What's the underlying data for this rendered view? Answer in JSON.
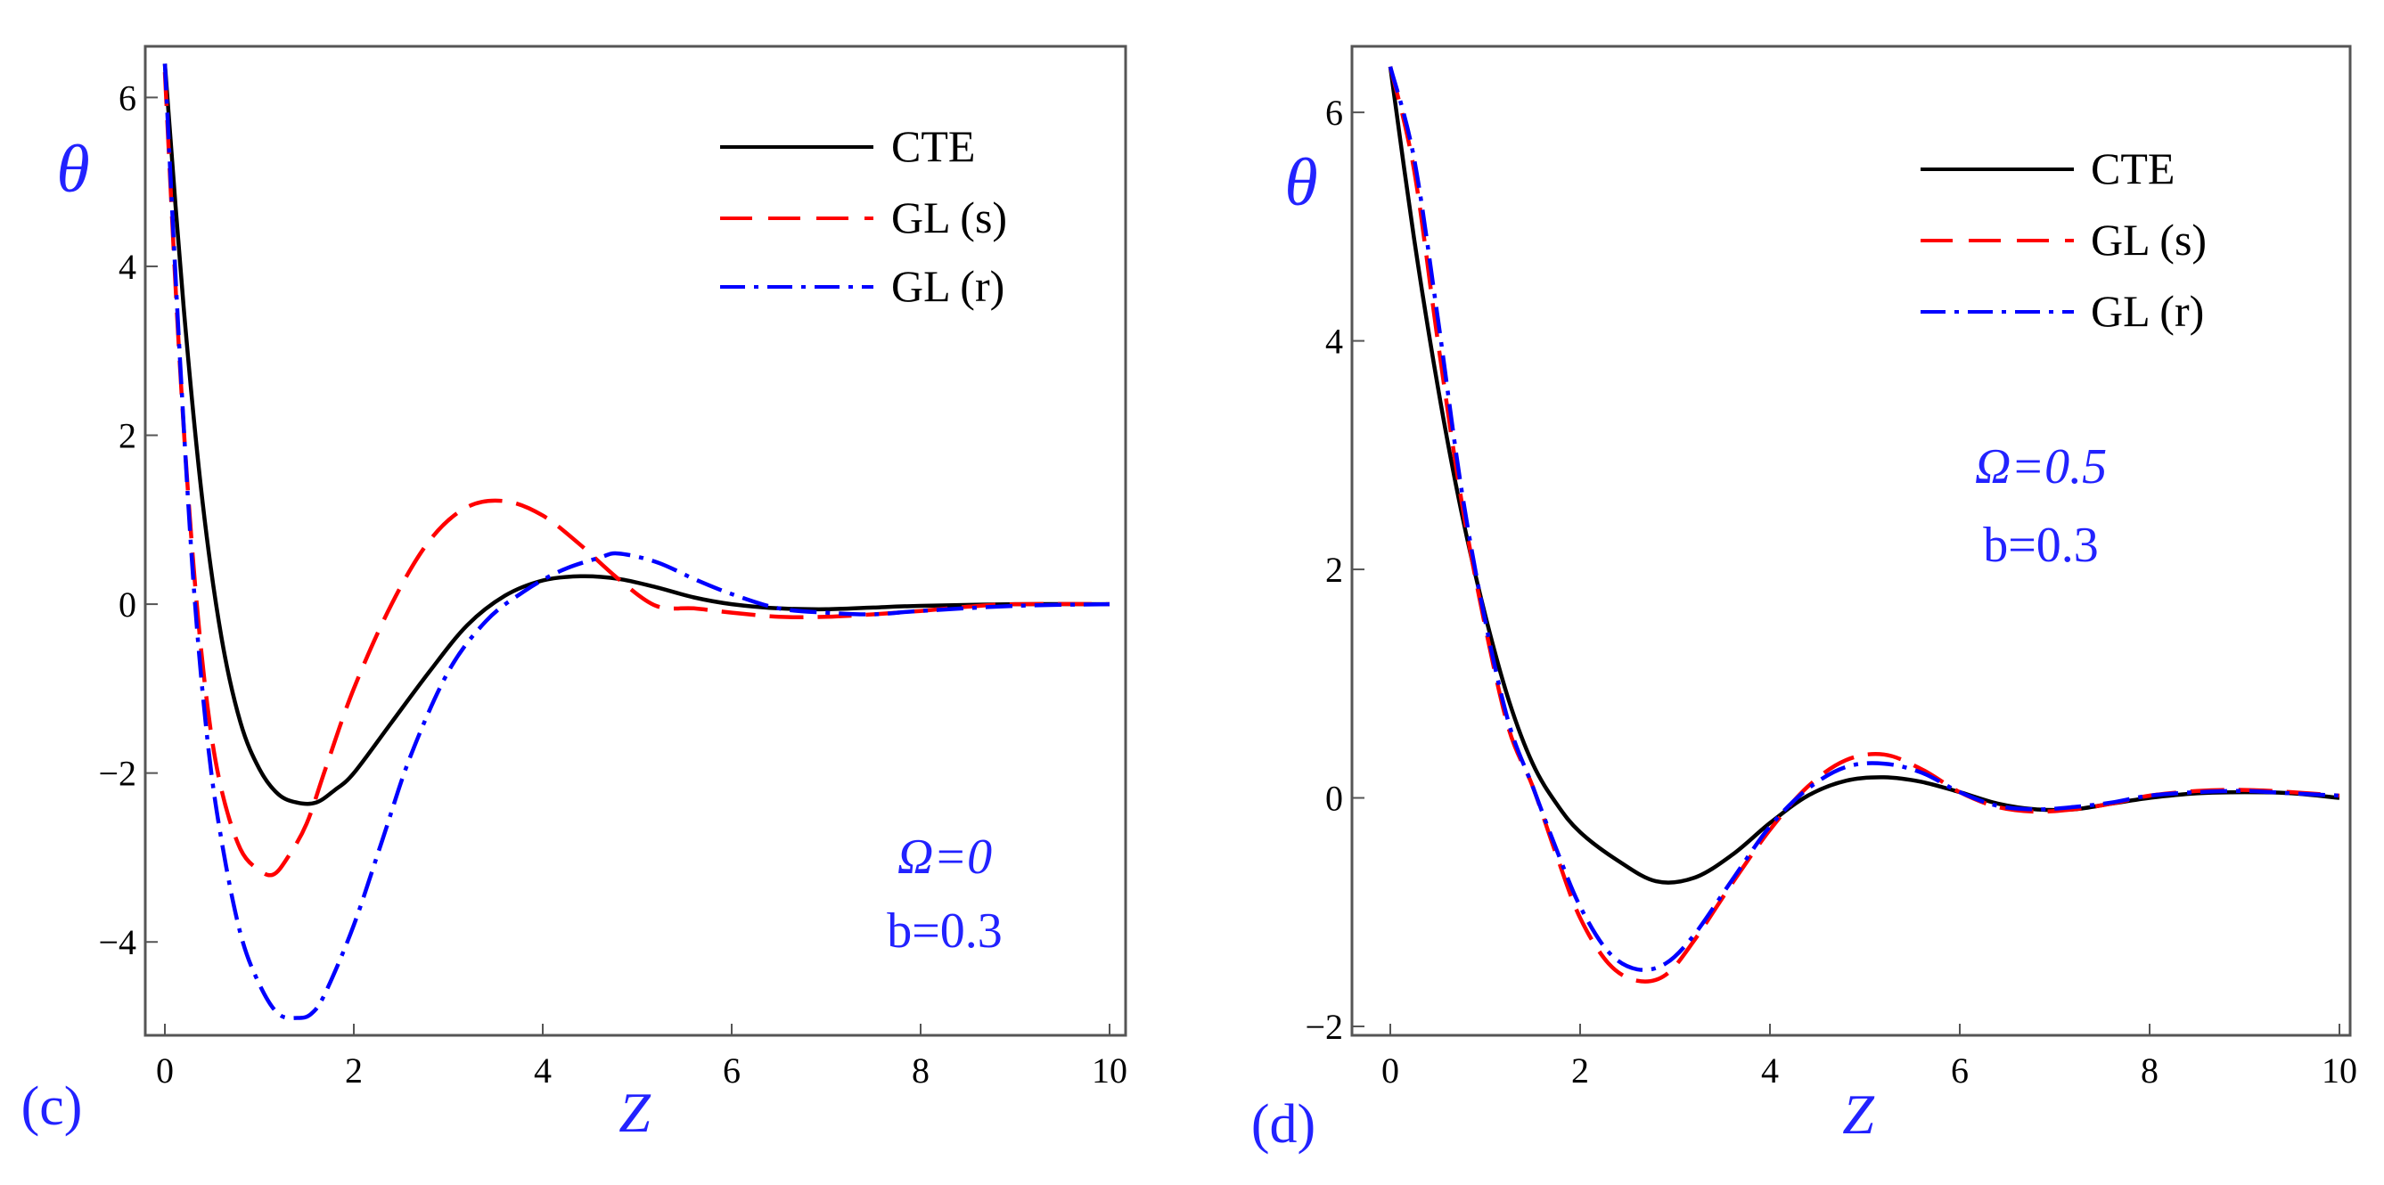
{
  "colors": {
    "CTE": "#000000",
    "GL (s)": "#ff0000",
    "GL (r)": "#0000ff",
    "annotation": "#2222ff",
    "axis": "#555555",
    "text": "#000000"
  },
  "chart_data": [
    {
      "type": "line",
      "panel_label": "(c)",
      "xlabel": "Z",
      "ylabel": "θ",
      "xlim": [
        0,
        10
      ],
      "ylim": [
        -5,
        6.5
      ],
      "xticks": [
        0,
        2,
        4,
        6,
        8,
        10
      ],
      "yticks": [
        -4,
        -2,
        0,
        2,
        4,
        6
      ],
      "xtick_labels": [
        "0",
        "2",
        "4",
        "6",
        "8",
        "10"
      ],
      "ytick_labels": [
        "−4",
        "−2",
        "0",
        "2",
        "4",
        "6"
      ],
      "legend": {
        "position": "top-right",
        "entries": [
          "CTE",
          "GL (s)",
          "GL (r)"
        ]
      },
      "annotations": [
        "Ω=0",
        "b=0.3"
      ],
      "annotation_position": "bottom-right",
      "grid": false,
      "series": [
        {
          "name": "CTE",
          "style": "solid",
          "x": [
            0,
            0.2,
            0.4,
            0.6,
            0.8,
            1.0,
            1.2,
            1.4,
            1.6,
            1.8,
            2.0,
            2.4,
            2.8,
            3.2,
            3.6,
            4.0,
            4.4,
            4.8,
            5.2,
            5.6,
            6.0,
            6.5,
            7.0,
            7.5,
            8.0,
            9.0,
            10.0
          ],
          "y": [
            6.4,
            3.5,
            1.2,
            -0.4,
            -1.4,
            -1.95,
            -2.25,
            -2.35,
            -2.35,
            -2.2,
            -2.0,
            -1.4,
            -0.8,
            -0.25,
            0.1,
            0.28,
            0.33,
            0.3,
            0.2,
            0.08,
            0.0,
            -0.05,
            -0.06,
            -0.04,
            -0.02,
            0.0,
            0.0
          ]
        },
        {
          "name": "GL (s)",
          "style": "dashed",
          "x": [
            0,
            0.15,
            0.3,
            0.45,
            0.6,
            0.8,
            1.0,
            1.15,
            1.3,
            1.5,
            1.7,
            2.0,
            2.4,
            2.8,
            3.2,
            3.6,
            4.0,
            4.4,
            4.8,
            5.2,
            5.6,
            6.0,
            6.5,
            7.0,
            7.5,
            8.0,
            8.5,
            9.0,
            10.0
          ],
          "y": [
            6.3,
            3.0,
            0.5,
            -1.2,
            -2.2,
            -2.9,
            -3.15,
            -3.2,
            -3.0,
            -2.6,
            -1.95,
            -1.0,
            0.0,
            0.75,
            1.15,
            1.22,
            1.05,
            0.7,
            0.3,
            -0.02,
            -0.05,
            -0.1,
            -0.15,
            -0.15,
            -0.12,
            -0.08,
            -0.03,
            0.0,
            0.0
          ]
        },
        {
          "name": "GL (r)",
          "style": "dashdot",
          "x": [
            0,
            0.15,
            0.3,
            0.45,
            0.6,
            0.8,
            1.0,
            1.2,
            1.4,
            1.55,
            1.7,
            2.0,
            2.3,
            2.6,
            3.0,
            3.4,
            3.8,
            4.2,
            4.6,
            4.8,
            5.2,
            5.6,
            6.0,
            6.5,
            7.0,
            7.5,
            8.0,
            9.0,
            10.0
          ],
          "y": [
            6.4,
            3.1,
            0.3,
            -1.6,
            -2.8,
            -3.9,
            -4.5,
            -4.85,
            -4.9,
            -4.85,
            -4.6,
            -3.8,
            -2.8,
            -1.8,
            -0.8,
            -0.2,
            0.15,
            0.4,
            0.55,
            0.6,
            0.5,
            0.3,
            0.12,
            -0.05,
            -0.1,
            -0.12,
            -0.08,
            -0.02,
            0.0
          ]
        }
      ]
    },
    {
      "type": "line",
      "panel_label": "(d)",
      "xlabel": "Z",
      "ylabel": "θ",
      "xlim": [
        0,
        10
      ],
      "ylim": [
        -2,
        6.5
      ],
      "xticks": [
        0,
        2,
        4,
        6,
        8,
        10
      ],
      "yticks": [
        -2,
        0,
        2,
        4,
        6
      ],
      "xtick_labels": [
        "0",
        "2",
        "4",
        "6",
        "8",
        "10"
      ],
      "ytick_labels": [
        "−2",
        "0",
        "2",
        "4",
        "6"
      ],
      "legend": {
        "position": "top-right",
        "entries": [
          "CTE",
          "GL (s)",
          "GL (r)"
        ]
      },
      "annotations": [
        "Ω=0.5",
        "b=0.3"
      ],
      "annotation_position": "middle-right",
      "grid": false,
      "series": [
        {
          "name": "CTE",
          "style": "solid",
          "x": [
            0,
            0.25,
            0.5,
            0.75,
            1.0,
            1.25,
            1.5,
            1.75,
            2.0,
            2.4,
            2.8,
            3.2,
            3.6,
            4.0,
            4.4,
            4.8,
            5.2,
            5.6,
            6.0,
            6.4,
            6.8,
            7.2,
            7.6,
            8.0,
            8.5,
            9.0,
            9.5,
            10.0
          ],
          "y": [
            6.4,
            4.9,
            3.6,
            2.5,
            1.6,
            0.85,
            0.3,
            -0.05,
            -0.3,
            -0.55,
            -0.73,
            -0.7,
            -0.5,
            -0.22,
            0.02,
            0.15,
            0.18,
            0.14,
            0.05,
            -0.05,
            -0.1,
            -0.1,
            -0.05,
            0.0,
            0.04,
            0.05,
            0.04,
            0.0
          ]
        },
        {
          "name": "GL (s)",
          "style": "dashed",
          "x": [
            0,
            0.25,
            0.5,
            0.75,
            1.0,
            1.25,
            1.5,
            1.75,
            2.0,
            2.3,
            2.6,
            2.9,
            3.2,
            3.6,
            4.0,
            4.4,
            4.8,
            5.2,
            5.6,
            6.0,
            6.4,
            6.8,
            7.2,
            7.6,
            8.0,
            8.5,
            9.0,
            9.5,
            10.0
          ],
          "y": [
            6.4,
            5.5,
            4.0,
            2.6,
            1.5,
            0.6,
            0.1,
            -0.5,
            -1.05,
            -1.45,
            -1.6,
            -1.55,
            -1.25,
            -0.75,
            -0.28,
            0.1,
            0.33,
            0.38,
            0.25,
            0.05,
            -0.08,
            -0.12,
            -0.1,
            -0.05,
            0.02,
            0.06,
            0.07,
            0.05,
            0.02
          ]
        },
        {
          "name": "GL (r)",
          "style": "dashdot",
          "x": [
            0,
            0.25,
            0.5,
            0.75,
            1.0,
            1.25,
            1.5,
            1.75,
            2.0,
            2.3,
            2.6,
            2.9,
            3.2,
            3.6,
            4.0,
            4.4,
            4.8,
            5.2,
            5.6,
            6.0,
            6.4,
            6.8,
            7.2,
            7.6,
            8.0,
            8.5,
            9.0,
            9.5,
            10.0
          ],
          "y": [
            6.4,
            5.6,
            4.2,
            2.7,
            1.55,
            0.65,
            0.1,
            -0.45,
            -0.95,
            -1.35,
            -1.5,
            -1.45,
            -1.2,
            -0.72,
            -0.25,
            0.08,
            0.27,
            0.3,
            0.22,
            0.05,
            -0.07,
            -0.1,
            -0.08,
            -0.04,
            0.02,
            0.05,
            0.06,
            0.04,
            0.02
          ]
        }
      ]
    }
  ]
}
